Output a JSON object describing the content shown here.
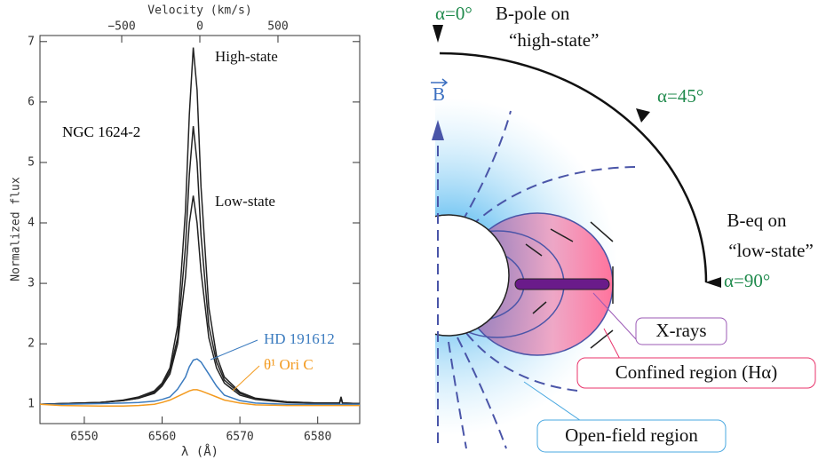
{
  "chart_data": {
    "type": "line",
    "title": "NGC 1624-2",
    "xlabel": "λ (Å)",
    "ylabel": "Normalized flux",
    "x2label": "Velocity (km/s)",
    "x": [
      6544.3,
      6547,
      6552,
      6555,
      6557,
      6559,
      6560,
      6561,
      6562,
      6563,
      6563.5,
      6564,
      6564.5,
      6565,
      6566,
      6567,
      6568,
      6570,
      6572,
      6576,
      6580,
      6582.8,
      6583,
      6583.2,
      6585.4
    ],
    "series": [
      {
        "name": "High-state",
        "color": "#222222",
        "values": [
          1.0,
          1.01,
          1.03,
          1.07,
          1.12,
          1.22,
          1.35,
          1.6,
          2.3,
          4.2,
          5.8,
          6.9,
          6.2,
          4.6,
          2.6,
          1.8,
          1.45,
          1.2,
          1.1,
          1.04,
          1.02,
          1.02,
          1.12,
          1.02,
          1.01
        ]
      },
      {
        "color": "#222222",
        "values": [
          1.0,
          1.01,
          1.03,
          1.06,
          1.1,
          1.2,
          1.32,
          1.55,
          2.1,
          3.6,
          4.8,
          5.6,
          5.0,
          3.8,
          2.3,
          1.7,
          1.4,
          1.18,
          1.09,
          1.04,
          1.02,
          1.02,
          1.1,
          1.02,
          1.01
        ]
      },
      {
        "name": "Low-state",
        "color": "#222222",
        "values": [
          1.0,
          1.01,
          1.03,
          1.06,
          1.1,
          1.18,
          1.3,
          1.5,
          2.0,
          3.1,
          4.0,
          4.45,
          4.0,
          3.2,
          2.1,
          1.6,
          1.35,
          1.15,
          1.08,
          1.03,
          1.02,
          1.02,
          1.08,
          1.02,
          1.01
        ]
      },
      {
        "name": "HD 191612",
        "color": "#3b7bbf",
        "values": [
          1.0,
          1.0,
          1.01,
          1.02,
          1.03,
          1.05,
          1.08,
          1.12,
          1.25,
          1.45,
          1.62,
          1.73,
          1.75,
          1.7,
          1.5,
          1.3,
          1.15,
          1.06,
          1.02,
          1.0,
          1.0,
          1.0,
          1.0,
          1.0,
          1.0
        ]
      },
      {
        "name": "θ¹ Ori C",
        "color": "#f39a1e",
        "values": [
          1.0,
          0.98,
          0.97,
          0.97,
          0.98,
          1.0,
          1.03,
          1.07,
          1.13,
          1.19,
          1.22,
          1.24,
          1.24,
          1.22,
          1.17,
          1.12,
          1.07,
          1.02,
          0.99,
          0.98,
          0.98,
          0.98,
          0.98,
          0.98,
          0.98
        ]
      }
    ],
    "xlim": [
      6544.3,
      6585.4
    ],
    "xticks": [
      6550,
      6560,
      6570,
      6580
    ],
    "ylim": [
      0.68,
      7.1
    ],
    "yticks": [
      1,
      2,
      3,
      4,
      5,
      6,
      7
    ],
    "x2lim": [
      -1023,
      1023
    ],
    "x2ticks": [
      {
        "value": -500,
        "label": "−500"
      },
      0,
      500
    ],
    "grid": false
  },
  "diagram": {
    "alpha_0": "α=0°",
    "b_pole": "B-pole on",
    "high_state": "“high-state”",
    "alpha_45": "α=45°",
    "b_eq": "B-eq on",
    "low_state": "“low-state”",
    "alpha_90": "α=90°",
    "b_field": "B",
    "xrays": "X-rays",
    "confined": "Confined region (Hα)",
    "open_field": "Open-field region"
  }
}
